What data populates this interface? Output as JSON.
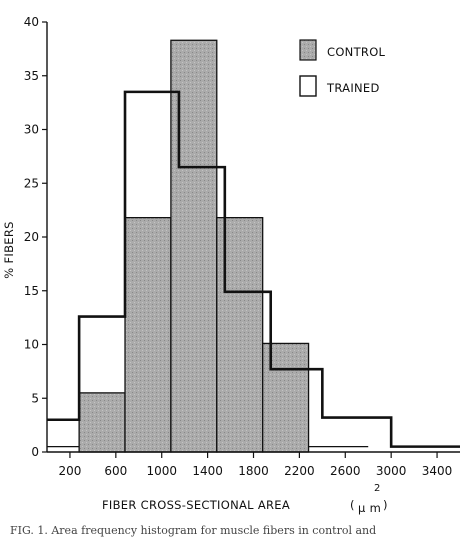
{
  "chart_data": {
    "type": "bar",
    "subtype": "histogram-overlay",
    "title": "",
    "xlabel": "FIBER CROSS-SECTIONAL AREA",
    "xlabel_unit_base": "μ m",
    "xlabel_unit_exp": "2",
    "ylabel": "% FIBERS",
    "xlim": [
      0,
      3600
    ],
    "ylim": [
      0,
      40
    ],
    "xticks": [
      "200",
      "600",
      "1000",
      "1400",
      "1800",
      "2200",
      "2600",
      "3000",
      "3400"
    ],
    "yticks": [
      "0",
      "5",
      "10",
      "15",
      "20",
      "25",
      "30",
      "35",
      "40"
    ],
    "legend_position": "top-right",
    "series": [
      {
        "name": "CONTROL",
        "style": "filled",
        "color": "#a8a8a8",
        "bins": [
          {
            "x0": 0,
            "x1": 280,
            "value": 0.5
          },
          {
            "x0": 280,
            "x1": 680,
            "value": 5.5
          },
          {
            "x0": 680,
            "x1": 1080,
            "value": 21.8
          },
          {
            "x0": 1080,
            "x1": 1480,
            "value": 38.3
          },
          {
            "x0": 1480,
            "x1": 1880,
            "value": 21.8
          },
          {
            "x0": 1880,
            "x1": 2280,
            "value": 10.1
          },
          {
            "x0": 2280,
            "x1": 2800,
            "value": 0.5
          }
        ]
      },
      {
        "name": "TRAINED",
        "style": "outline",
        "color": "#111111",
        "bins": [
          {
            "x0": 0,
            "x1": 280,
            "value": 3.0
          },
          {
            "x0": 280,
            "x1": 680,
            "value": 12.6
          },
          {
            "x0": 680,
            "x1": 1150,
            "value": 33.5
          },
          {
            "x0": 1150,
            "x1": 1550,
            "value": 26.5
          },
          {
            "x0": 1550,
            "x1": 1950,
            "value": 14.9
          },
          {
            "x0": 1950,
            "x1": 2400,
            "value": 7.7
          },
          {
            "x0": 2400,
            "x1": 3000,
            "value": 3.2
          },
          {
            "x0": 3000,
            "x1": 3600,
            "value": 0.5
          }
        ]
      }
    ]
  },
  "caption": "FIG. 1. Area frequency histogram for muscle fibers in control and"
}
